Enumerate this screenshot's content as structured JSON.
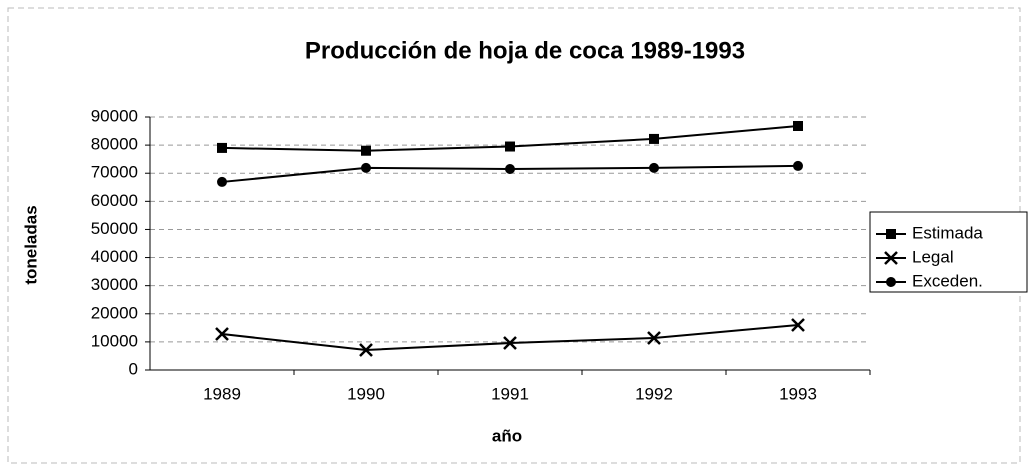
{
  "chart_data": {
    "type": "line",
    "title": "Producción de hoja de coca 1989-1993",
    "xlabel": "año",
    "ylabel": "toneladas",
    "categories": [
      "1989",
      "1990",
      "1991",
      "1992",
      "1993"
    ],
    "series": [
      {
        "name": "Estimada",
        "color": "#000000",
        "marker": "square",
        "values": [
          79000,
          78000,
          79500,
          82200,
          86800
        ]
      },
      {
        "name": "Legal",
        "color": "#000000",
        "marker": "x",
        "values": [
          12800,
          7100,
          9600,
          11400,
          16000
        ]
      },
      {
        "name": "Exceden.",
        "color": "#000000",
        "marker": "circle",
        "values": [
          66900,
          71900,
          71500,
          71900,
          72600
        ]
      }
    ],
    "ylim": [
      0,
      90000
    ],
    "yticks": [
      0,
      10000,
      20000,
      30000,
      40000,
      50000,
      60000,
      70000,
      80000,
      90000
    ],
    "grid": true,
    "legend": "right"
  }
}
